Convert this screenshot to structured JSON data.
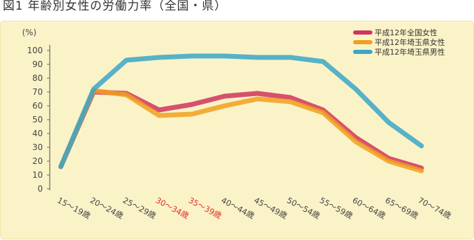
{
  "caption": "図1 年齢別女性の労働力率（全国・県）",
  "chart_data": {
    "type": "line",
    "y_unit": "(%)",
    "yticks": [
      0,
      10,
      20,
      30,
      40,
      50,
      60,
      70,
      80,
      90,
      100
    ],
    "ylim": [
      0,
      100
    ],
    "categories": [
      "15〜19歳",
      "20〜24歳",
      "25〜29歳",
      "30〜34歳",
      "35〜39歳",
      "40〜44歳",
      "45〜49歳",
      "50〜54歳",
      "55〜59歳",
      "60〜64歳",
      "65〜69歳",
      "70〜74歳"
    ],
    "highlight_categories": [
      "30〜34歳",
      "35〜39歳"
    ],
    "series": [
      {
        "name": "平成12年全国女性",
        "color": "#d0345e",
        "values": [
          16,
          70,
          69,
          57,
          61,
          67,
          69,
          66,
          57,
          37,
          22,
          15
        ]
      },
      {
        "name": "平成12年埼玉県女性",
        "color": "#f0a020",
        "values": [
          16,
          71,
          68,
          53,
          54,
          60,
          65,
          63,
          55,
          34,
          20,
          13
        ]
      },
      {
        "name": "平成12年埼玉県男性",
        "color": "#3aa6c8",
        "values": [
          16,
          72,
          93,
          95,
          96,
          96,
          95,
          95,
          92,
          72,
          48,
          31
        ]
      }
    ],
    "legend_position": "top-right",
    "grid": false
  }
}
